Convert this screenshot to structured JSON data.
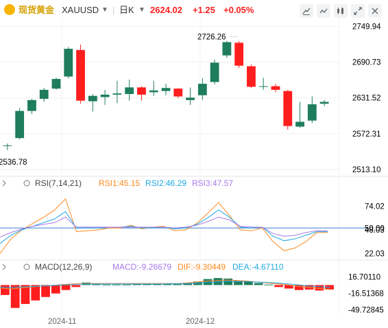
{
  "header": {
    "title": "现货黄金",
    "symbol": "XAUUSD",
    "timeframe": "日K",
    "price": "2624.02",
    "change": "+1.25",
    "change_pct": "+0.05%",
    "up_color": "#ff1e1e",
    "tools": [
      "line-draw-icon",
      "indicator-icon",
      "ruler-icon",
      "fullscreen-icon",
      "close-icon"
    ]
  },
  "chart_data": [
    {
      "type": "candlestick",
      "title": "现货黄金 XAUUSD 日K",
      "x_labels": [
        "2024-11",
        "2024-12"
      ],
      "ylim": [
        2505,
        2762
      ],
      "y_ticks": [
        2749.94,
        2690.73,
        2631.52,
        2572.31,
        2513.1
      ],
      "y_tick_labels": [
        "2749.94",
        "2690.73",
        "2631.52",
        "2572.31",
        "2513.10"
      ],
      "annotations": {
        "high": "2726.26",
        "low": "2536.78",
        "high_value": 2726.26,
        "low_value": 2536.78
      },
      "colors": {
        "up": "#1e7d5c",
        "down": "#ff1e1e"
      },
      "candles": [
        {
          "o": 2553,
          "h": 2556,
          "l": 2545,
          "c": 2553
        },
        {
          "o": 2565,
          "h": 2615,
          "l": 2563,
          "c": 2610
        },
        {
          "o": 2610,
          "h": 2630,
          "l": 2605,
          "c": 2628
        },
        {
          "o": 2630,
          "h": 2648,
          "l": 2625,
          "c": 2645
        },
        {
          "o": 2647,
          "h": 2665,
          "l": 2645,
          "c": 2663
        },
        {
          "o": 2667,
          "h": 2716,
          "l": 2664,
          "c": 2713
        },
        {
          "o": 2711,
          "h": 2720,
          "l": 2622,
          "c": 2627
        },
        {
          "o": 2626,
          "h": 2638,
          "l": 2609,
          "c": 2635
        },
        {
          "o": 2633,
          "h": 2645,
          "l": 2620,
          "c": 2637
        },
        {
          "o": 2637,
          "h": 2660,
          "l": 2623,
          "c": 2639
        },
        {
          "o": 2638,
          "h": 2662,
          "l": 2627,
          "c": 2649
        },
        {
          "o": 2649,
          "h": 2651,
          "l": 2627,
          "c": 2637
        },
        {
          "o": 2641,
          "h": 2660,
          "l": 2635,
          "c": 2644
        },
        {
          "o": 2643,
          "h": 2655,
          "l": 2636,
          "c": 2648
        },
        {
          "o": 2647,
          "h": 2648,
          "l": 2631,
          "c": 2634
        },
        {
          "o": 2628,
          "h": 2649,
          "l": 2620,
          "c": 2632
        },
        {
          "o": 2636,
          "h": 2664,
          "l": 2628,
          "c": 2655
        },
        {
          "o": 2658,
          "h": 2695,
          "l": 2654,
          "c": 2690
        },
        {
          "o": 2702,
          "h": 2726,
          "l": 2698,
          "c": 2724
        },
        {
          "o": 2723,
          "h": 2726,
          "l": 2681,
          "c": 2685
        },
        {
          "o": 2684,
          "h": 2687,
          "l": 2648,
          "c": 2650
        },
        {
          "o": 2651,
          "h": 2665,
          "l": 2645,
          "c": 2651
        },
        {
          "o": 2651,
          "h": 2655,
          "l": 2641,
          "c": 2645
        },
        {
          "o": 2643,
          "h": 2645,
          "l": 2579,
          "c": 2585
        },
        {
          "o": 2584,
          "h": 2625,
          "l": 2582,
          "c": 2592
        },
        {
          "o": 2594,
          "h": 2634,
          "l": 2590,
          "c": 2621
        },
        {
          "o": 2622,
          "h": 2628,
          "l": 2618,
          "c": 2625
        }
      ]
    },
    {
      "type": "line",
      "title": "RSI(7,14,21)",
      "ylim": [
        17,
        88
      ],
      "y_ticks": [
        74.02,
        50.0,
        48.03,
        22.03
      ],
      "y_tick_labels": [
        "74.02",
        "50.00",
        "48.03",
        "22.03"
      ],
      "reference_line": 50,
      "series": [
        {
          "name": "RSI1",
          "label": "RSI1:45.15",
          "color": "#ff8a1e",
          "values": [
            22,
            38,
            48,
            55,
            62,
            70,
            82,
            46,
            47,
            48,
            50,
            50,
            53,
            49,
            51,
            52,
            47,
            48,
            55,
            66,
            78,
            64,
            48,
            47,
            50,
            35,
            25,
            28,
            35,
            45,
            45
          ]
        },
        {
          "name": "RSI2",
          "label": "RSI2:46.29",
          "color": "#1ea8e0",
          "values": [
            33,
            42,
            48,
            52,
            56,
            60,
            68,
            50,
            50,
            50,
            51,
            51,
            52,
            50,
            50,
            51,
            49,
            50,
            54,
            61,
            70,
            62,
            51,
            50,
            51,
            41,
            36,
            38,
            42,
            46,
            46
          ]
        },
        {
          "name": "RSI3",
          "label": "RSI3:47.57",
          "color": "#a879ea",
          "values": [
            40,
            45,
            49,
            52,
            54,
            56,
            62,
            51,
            51,
            51,
            51,
            51,
            51,
            51,
            51,
            51,
            50,
            51,
            53,
            57,
            62,
            59,
            52,
            51,
            51,
            44,
            41,
            42,
            45,
            47,
            47
          ]
        }
      ]
    },
    {
      "type": "bar",
      "title": "MACD(12,26,9)",
      "ylim": [
        -56,
        24
      ],
      "y_ticks": [
        16.7011,
        -16.51368,
        -49.72845
      ],
      "y_tick_labels": [
        "16.70110",
        "-16.51368",
        "-49.72845"
      ],
      "histogram_colors": {
        "up": "#1e7d5c",
        "down": "#ff1e1e"
      },
      "histogram": [
        -20,
        -46,
        -38,
        -31,
        -24,
        -17,
        -10,
        -4,
        5,
        2,
        1,
        1,
        1,
        2,
        2,
        2,
        2,
        2,
        3,
        7,
        12,
        14,
        13,
        9,
        7,
        4,
        1,
        -4,
        -7,
        -10,
        -9,
        -11,
        -9
      ],
      "lines": [
        {
          "name": "MACD",
          "label": "MACD:-9.26679",
          "color": "#a879ea",
          "values": [
            -6,
            -8,
            -6,
            -4,
            -2,
            -1,
            1,
            2,
            3,
            3,
            3,
            3,
            3,
            3,
            3,
            3,
            3,
            3,
            4,
            6,
            8,
            9,
            10,
            9,
            8,
            6,
            4,
            2,
            0,
            -3,
            -5,
            -7,
            -9
          ]
        },
        {
          "name": "DIF",
          "label": "DIF:-9.30449",
          "color": "#ff8a1e",
          "values": [
            -6,
            -8,
            -6,
            -4,
            -2,
            -1,
            1,
            2,
            3,
            3,
            3,
            3,
            3,
            3,
            3,
            3,
            3,
            3,
            4,
            6,
            8,
            9,
            10,
            9,
            8,
            6,
            4,
            2,
            0,
            -3,
            -5,
            -7,
            -9
          ]
        },
        {
          "name": "DEA",
          "label": "DEA:-4.67110",
          "color": "#1ea8e0",
          "values": [
            -4,
            -5,
            -4,
            -3,
            -2,
            -1,
            0,
            1,
            2,
            2,
            2,
            2,
            2,
            2,
            2,
            2,
            2,
            3,
            3,
            4,
            5,
            6,
            7,
            7,
            7,
            6,
            5,
            4,
            2,
            0,
            -2,
            -3,
            -5
          ]
        }
      ]
    }
  ]
}
